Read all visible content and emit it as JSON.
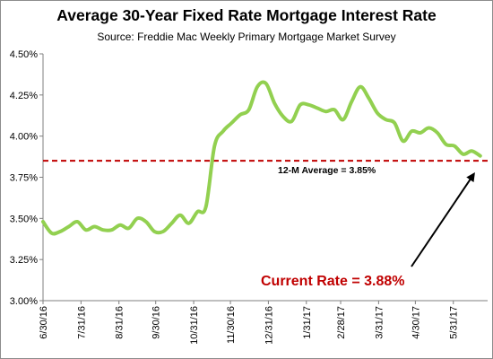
{
  "chart_data": {
    "type": "line",
    "title": "Average 30-Year Fixed Rate Mortgage Interest Rate",
    "subtitle": "Source: Freddie Mac Weekly Primary Mortgage Market Survey",
    "xlabel": "",
    "ylabel": "",
    "ylim": [
      3.0,
      4.5
    ],
    "y_ticks": [
      "3.00%",
      "3.25%",
      "3.50%",
      "3.75%",
      "4.00%",
      "4.25%",
      "4.50%"
    ],
    "y_tick_values": [
      3.0,
      3.25,
      3.5,
      3.75,
      4.0,
      4.25,
      4.5
    ],
    "x_tick_labels": [
      "6/30/16",
      "7/31/16",
      "8/31/16",
      "9/30/16",
      "10/31/16",
      "11/30/16",
      "12/31/16",
      "1/31/17",
      "2/28/17",
      "3/31/17",
      "4/30/17",
      "5/31/17"
    ],
    "grid": false,
    "legend": "none",
    "series": [
      {
        "color": "#92d050",
        "x": [
          "2016-06-30",
          "2016-07-07",
          "2016-07-14",
          "2016-07-21",
          "2016-07-28",
          "2016-08-04",
          "2016-08-11",
          "2016-08-18",
          "2016-08-25",
          "2016-09-01",
          "2016-09-08",
          "2016-09-15",
          "2016-09-22",
          "2016-09-29",
          "2016-10-06",
          "2016-10-13",
          "2016-10-20",
          "2016-10-27",
          "2016-11-03",
          "2016-11-10",
          "2016-11-17",
          "2016-11-24",
          "2016-12-01",
          "2016-12-08",
          "2016-12-15",
          "2016-12-22",
          "2016-12-29",
          "2017-01-05",
          "2017-01-12",
          "2017-01-19",
          "2017-01-26",
          "2017-02-02",
          "2017-02-09",
          "2017-02-16",
          "2017-02-23",
          "2017-03-02",
          "2017-03-09",
          "2017-03-16",
          "2017-03-23",
          "2017-03-30",
          "2017-04-06",
          "2017-04-13",
          "2017-04-20",
          "2017-04-27",
          "2017-05-04",
          "2017-05-11",
          "2017-05-18",
          "2017-05-25",
          "2017-06-01",
          "2017-06-08",
          "2017-06-15",
          "2017-06-22"
        ],
        "values": [
          3.48,
          3.41,
          3.42,
          3.45,
          3.48,
          3.43,
          3.45,
          3.43,
          3.43,
          3.46,
          3.44,
          3.5,
          3.48,
          3.42,
          3.42,
          3.47,
          3.52,
          3.47,
          3.54,
          3.57,
          3.94,
          4.03,
          4.08,
          4.13,
          4.16,
          4.3,
          4.32,
          4.2,
          4.12,
          4.09,
          4.19,
          4.19,
          4.17,
          4.15,
          4.16,
          4.1,
          4.21,
          4.3,
          4.23,
          4.14,
          4.1,
          4.08,
          3.97,
          4.03,
          4.02,
          4.05,
          4.02,
          3.95,
          3.94,
          3.89,
          3.91,
          3.88
        ]
      }
    ],
    "reference_line": {
      "value": 3.85,
      "color": "#c00000",
      "label": "12-M Average = 3.85%"
    },
    "annotation": {
      "text": "Current Rate = 3.88%",
      "color": "#c00000"
    }
  }
}
